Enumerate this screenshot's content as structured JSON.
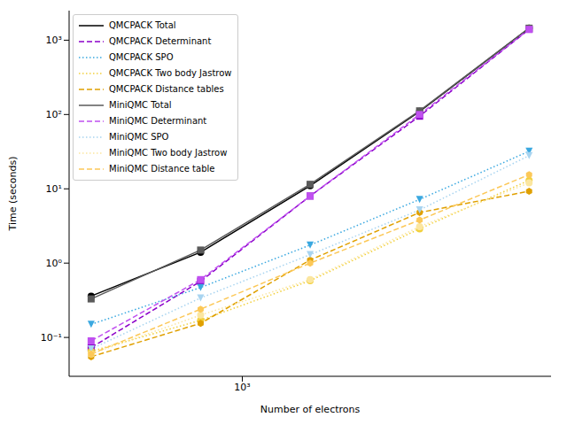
{
  "chart_data": {
    "type": "line",
    "x_label": "Number of electrons",
    "y_label": "Time (seconds)",
    "x": [
      384,
      768,
      1536,
      3072,
      6144
    ],
    "xlim": [
      334,
      7060
    ],
    "ylim": [
      0.03,
      2500
    ],
    "xticks": [
      {
        "value": 1000,
        "label": "10³"
      }
    ],
    "yticks": [
      {
        "value": 0.1,
        "label": "10⁻¹"
      },
      {
        "value": 1,
        "label": "10⁰"
      },
      {
        "value": 10,
        "label": "10¹"
      },
      {
        "value": 100,
        "label": "10²"
      },
      {
        "value": 1000,
        "label": "10³"
      }
    ],
    "log": true,
    "grid": false,
    "legend": "upper left",
    "series": [
      {
        "name": "QMCPACK Total",
        "color": "#000000",
        "marker": "circle",
        "line_style": "solid",
        "values": [
          0.36,
          1.4,
          11,
          110,
          1450
        ]
      },
      {
        "name": "QMCPACK Determinant",
        "color": "#8b00c9",
        "marker": "square",
        "line_style": "dashed",
        "values": [
          0.073,
          0.57,
          8,
          95,
          1400
        ]
      },
      {
        "name": "QMCPACK SPO",
        "color": "#3aa8e0",
        "marker": "triangle-down",
        "line_style": "dotted",
        "values": [
          0.15,
          0.47,
          1.75,
          7.2,
          32
        ]
      },
      {
        "name": "QMCPACK Two body Jastrow",
        "color": "#f2d03c",
        "marker": "circle",
        "line_style": "dotted",
        "values": [
          0.065,
          0.17,
          0.58,
          2.9,
          13
        ]
      },
      {
        "name": "QMCPACK Distance tables",
        "color": "#e0a000",
        "marker": "hexagon",
        "line_style": "dashed",
        "values": [
          0.055,
          0.155,
          1.1,
          4.8,
          9.3
        ]
      },
      {
        "name": "MiniQMC Total",
        "color": "#5a5a5a",
        "marker": "square",
        "line_style": "solid",
        "values": [
          0.33,
          1.5,
          11.5,
          112,
          1450
        ]
      },
      {
        "name": "MiniQMC Determinant",
        "color": "#c050f0",
        "marker": "square",
        "line_style": "dashed",
        "values": [
          0.09,
          0.6,
          8,
          100,
          1400
        ]
      },
      {
        "name": "MiniQMC SPO",
        "color": "#a8d4f0",
        "marker": "triangle-down",
        "line_style": "dotted",
        "values": [
          0.07,
          0.34,
          1.3,
          5.2,
          28
        ]
      },
      {
        "name": "MiniQMC Two body Jastrow",
        "color": "#fbe6a0",
        "marker": "circle",
        "line_style": "dotted",
        "values": [
          0.06,
          0.2,
          0.6,
          3.1,
          12
        ]
      },
      {
        "name": "MiniQMC Distance table",
        "color": "#fcc858",
        "marker": "hexagon",
        "line_style": "dashed",
        "values": [
          0.06,
          0.24,
          1.0,
          3.8,
          15.5
        ]
      }
    ]
  }
}
